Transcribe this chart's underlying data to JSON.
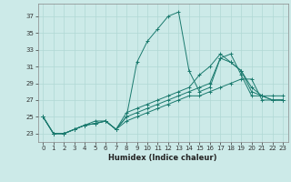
{
  "xlabel": "Humidex (Indice chaleur)",
  "bg_color": "#cceae8",
  "grid_color": "#b0d8d5",
  "line_color": "#1a7a6e",
  "xlim": [
    -0.5,
    23.5
  ],
  "ylim": [
    22.0,
    38.5
  ],
  "yticks": [
    23,
    25,
    27,
    29,
    31,
    33,
    35,
    37
  ],
  "xticks": [
    0,
    1,
    2,
    3,
    4,
    5,
    6,
    7,
    8,
    9,
    10,
    11,
    12,
    13,
    14,
    15,
    16,
    17,
    18,
    19,
    20,
    21,
    22,
    23
  ],
  "series": [
    [
      25.0,
      23.0,
      23.0,
      23.5,
      24.0,
      24.5,
      24.5,
      23.5,
      25.0,
      31.5,
      34.0,
      35.5,
      37.0,
      37.5,
      30.5,
      28.0,
      28.5,
      32.0,
      32.5,
      30.0,
      27.5,
      27.5,
      27.0,
      27.0
    ],
    [
      25.0,
      23.0,
      23.0,
      23.5,
      24.0,
      24.2,
      24.5,
      23.5,
      24.5,
      25.0,
      25.5,
      26.0,
      26.5,
      27.0,
      27.5,
      27.5,
      28.0,
      28.5,
      29.0,
      29.5,
      29.5,
      27.0,
      27.0,
      27.0
    ],
    [
      25.0,
      23.0,
      23.0,
      23.5,
      24.0,
      24.2,
      24.5,
      23.5,
      25.0,
      25.5,
      26.0,
      26.5,
      27.0,
      27.5,
      28.0,
      28.5,
      29.0,
      32.0,
      31.5,
      30.5,
      28.0,
      27.5,
      27.0,
      27.0
    ],
    [
      25.0,
      23.0,
      23.0,
      23.5,
      24.0,
      24.2,
      24.5,
      23.5,
      25.5,
      26.0,
      26.5,
      27.0,
      27.5,
      28.0,
      28.5,
      30.0,
      31.0,
      32.5,
      31.5,
      30.5,
      28.5,
      27.5,
      27.5,
      27.5
    ]
  ]
}
